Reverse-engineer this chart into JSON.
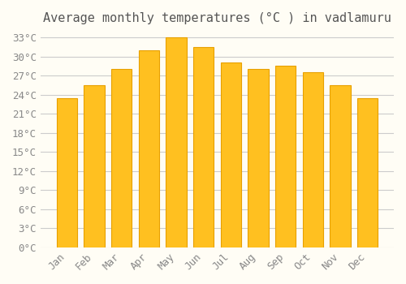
{
  "title": "Average monthly temperatures (°C ) in vadlamuru",
  "months": [
    "Jan",
    "Feb",
    "Mar",
    "Apr",
    "May",
    "Jun",
    "Jul",
    "Aug",
    "Sep",
    "Oct",
    "Nov",
    "Dec"
  ],
  "values": [
    23.5,
    25.5,
    28,
    31,
    33,
    31.5,
    29,
    28,
    28.5,
    27.5,
    25.5,
    23.5
  ],
  "bar_color_main": "#FFC020",
  "bar_color_edge": "#E8A000",
  "background_color": "#FFFDF5",
  "grid_color": "#CCCCCC",
  "ylim": [
    0,
    34
  ],
  "yticks": [
    0,
    3,
    6,
    9,
    12,
    15,
    18,
    21,
    24,
    27,
    30,
    33
  ],
  "ytick_labels": [
    "0°C",
    "3°C",
    "6°C",
    "9°C",
    "12°C",
    "15°C",
    "18°C",
    "21°C",
    "24°C",
    "27°C",
    "30°C",
    "33°C"
  ],
  "title_fontsize": 11,
  "tick_fontsize": 9,
  "font_family": "monospace"
}
